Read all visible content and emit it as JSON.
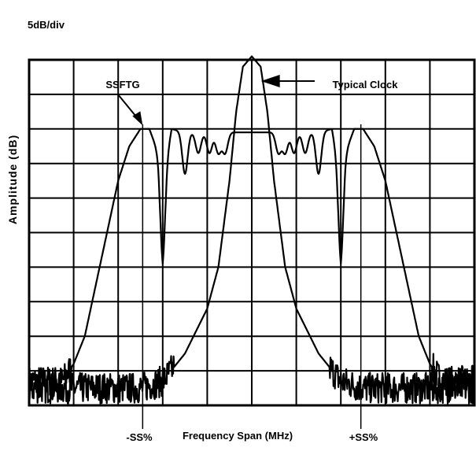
{
  "chart_data": {
    "type": "line",
    "scale_label": "5dB/div",
    "xlabel": "Frequency Span (MHz)",
    "ylabel": "Amplitude (dB)",
    "xlim": [
      -1,
      1
    ],
    "ylim": [
      0,
      10
    ],
    "grid": true,
    "x_markers": [
      {
        "label": "-SS%",
        "x": -0.49
      },
      {
        "label": "+SS%",
        "x": 0.49
      }
    ],
    "annotations": [
      {
        "text": "SSFTG",
        "arrow_to": {
          "x": -0.49,
          "y": 8.1
        }
      },
      {
        "text": "Typical Clock",
        "arrow_to": {
          "x": 0.02,
          "y": 10.1
        }
      }
    ],
    "series": [
      {
        "name": "SSFTG",
        "shape": "spread-spectrum plateau with notches",
        "x": [
          -1.0,
          -0.85,
          -0.8,
          -0.75,
          -0.7,
          -0.65,
          -0.6,
          -0.55,
          -0.5,
          -0.46,
          -0.42,
          -0.4,
          -0.38,
          -0.36,
          -0.3,
          0.3,
          0.36,
          0.38,
          0.4,
          0.42,
          0.46,
          0.5,
          0.55,
          0.6,
          0.65,
          0.7,
          0.75,
          0.8,
          0.85,
          1.0
        ],
        "y": [
          0.7,
          0.7,
          1.2,
          2.0,
          3.5,
          5.0,
          6.5,
          7.5,
          8.0,
          8.0,
          7.3,
          6.0,
          7.3,
          8.0,
          7.9,
          7.9,
          8.0,
          7.3,
          6.0,
          7.3,
          8.0,
          8.0,
          7.5,
          6.5,
          5.0,
          3.5,
          2.0,
          1.2,
          0.7,
          0.7
        ],
        "notch_x": [
          -0.4,
          -0.3,
          -0.24,
          -0.19,
          -0.15,
          -0.12,
          0.12,
          0.15,
          0.19,
          0.24,
          0.3,
          0.4
        ]
      },
      {
        "name": "Typical Clock",
        "shape": "single narrow peak",
        "x": [
          -1.0,
          -0.7,
          -0.5,
          -0.4,
          -0.3,
          -0.2,
          -0.15,
          -0.1,
          -0.07,
          -0.04,
          0.0,
          0.04,
          0.07,
          0.1,
          0.15,
          0.2,
          0.3,
          0.4,
          0.5,
          0.7,
          1.0
        ],
        "y": [
          0.5,
          0.5,
          0.5,
          0.7,
          1.5,
          2.8,
          4.0,
          6.5,
          8.5,
          9.8,
          10.1,
          9.8,
          8.5,
          6.5,
          4.0,
          2.8,
          1.5,
          0.7,
          0.5,
          0.5,
          0.5
        ]
      }
    ]
  }
}
